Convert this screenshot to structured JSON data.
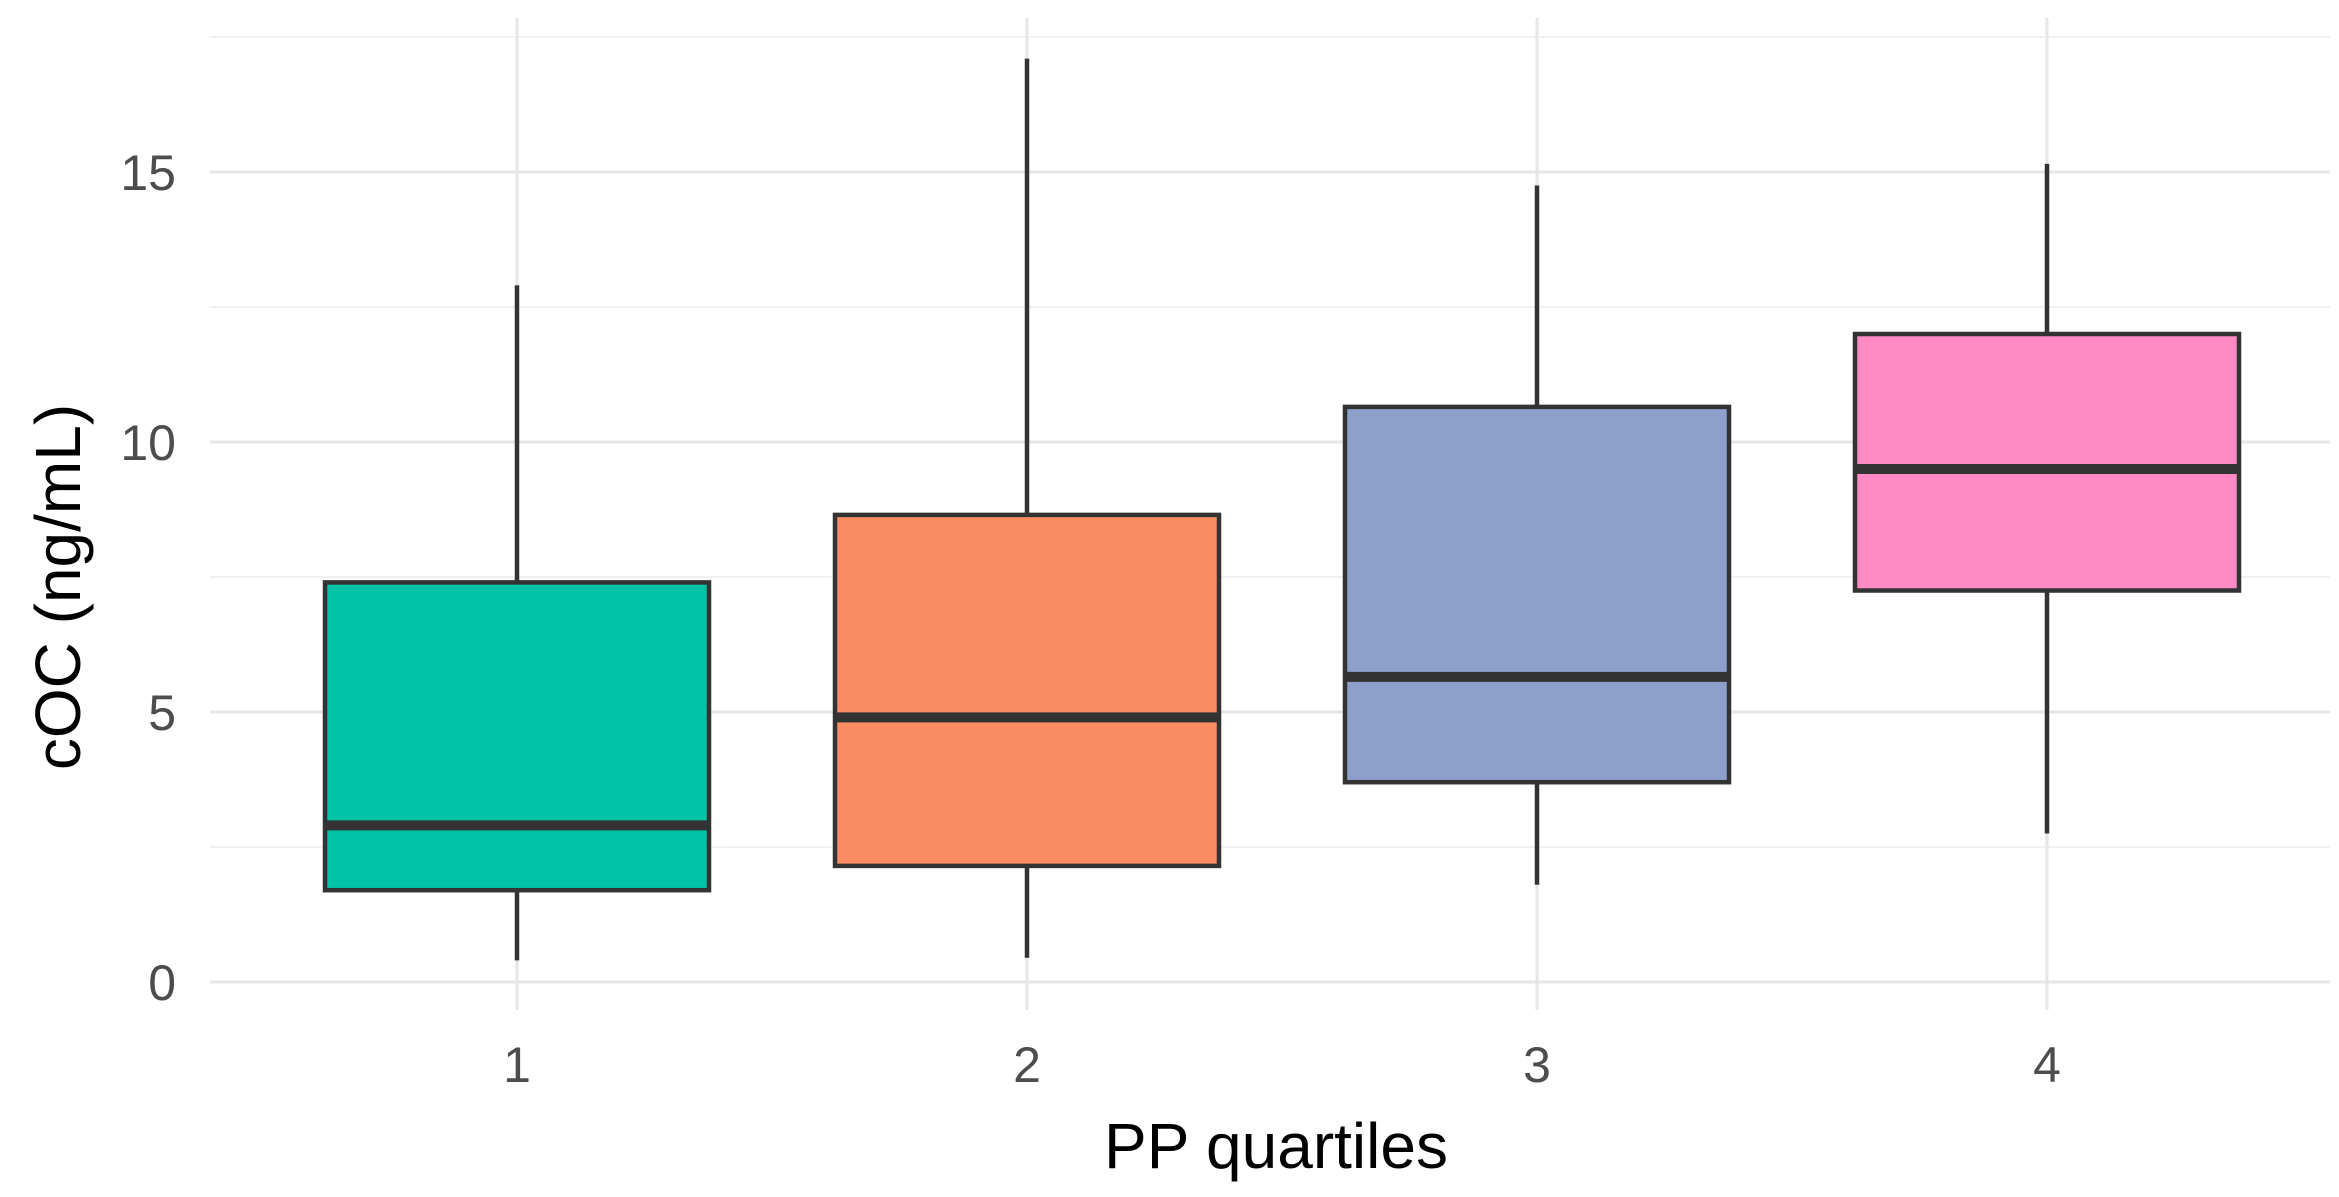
{
  "chart_data": {
    "type": "boxplot",
    "title": "",
    "xlabel": "PP quartiles",
    "ylabel": "cOC (ng/mL)",
    "categories": [
      "1",
      "2",
      "3",
      "4"
    ],
    "y_ticks": [
      "0",
      "5",
      "10",
      "15"
    ],
    "ylim": [
      -0.6,
      17.6
    ],
    "grid": true,
    "legend": "none",
    "boxes": [
      {
        "category": "1",
        "whisker_low": 0.4,
        "q1": 1.7,
        "median": 2.9,
        "q3": 7.4,
        "whisker_high": 12.9,
        "color": "#00C2A5"
      },
      {
        "category": "2",
        "whisker_low": 0.45,
        "q1": 2.15,
        "median": 4.9,
        "q3": 8.65,
        "whisker_high": 17.1,
        "color": "#FC8D62"
      },
      {
        "category": "3",
        "whisker_low": 1.8,
        "q1": 3.7,
        "median": 5.65,
        "q3": 10.65,
        "whisker_high": 14.75,
        "color": "#8DA0CB"
      },
      {
        "category": "4",
        "whisker_low": 2.75,
        "q1": 7.25,
        "median": 9.5,
        "q3": 12.0,
        "whisker_high": 15.15,
        "color": "#FF8AC5"
      }
    ]
  }
}
